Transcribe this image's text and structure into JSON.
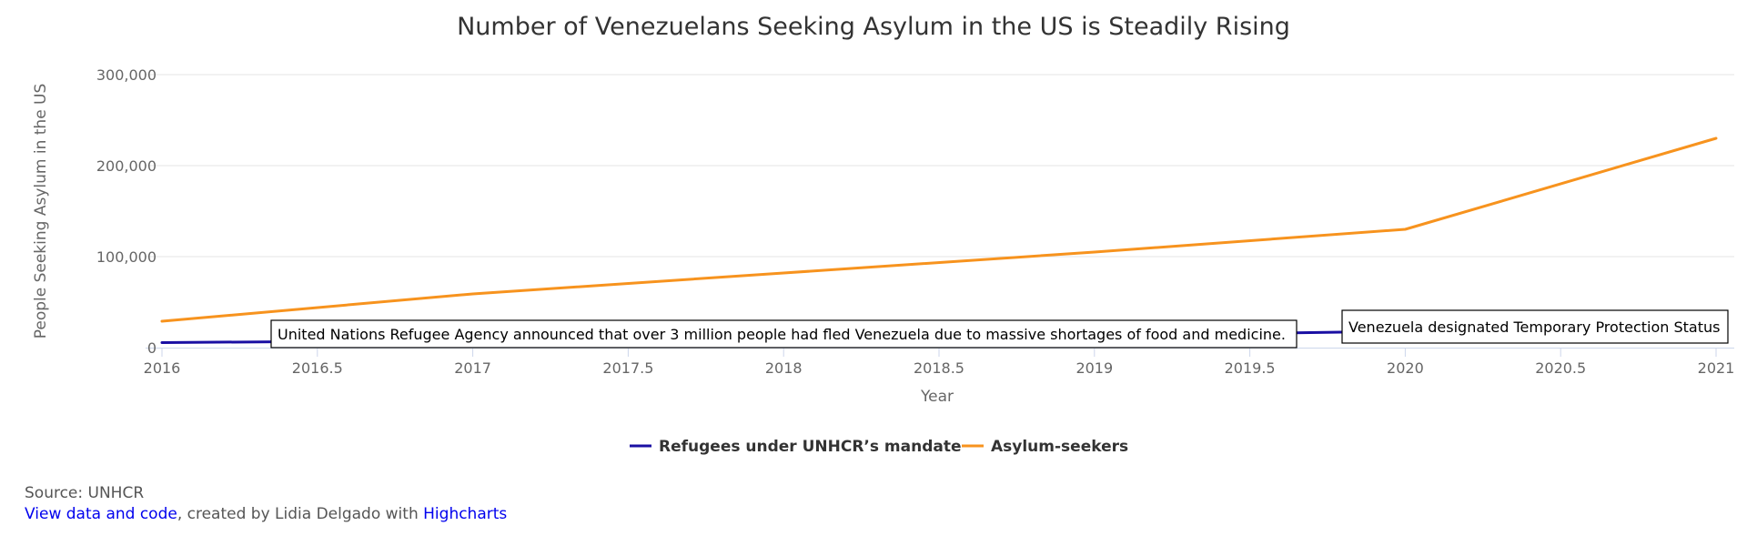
{
  "chart_data": {
    "type": "line",
    "title": "Number of Venezuelans Seeking Asylum in the US is Steadily Rising",
    "xlabel": "Year",
    "ylabel": "People Seeking Asylum in the US",
    "x": [
      2016,
      2017,
      2018,
      2019,
      2020,
      2021
    ],
    "xlim": [
      2016,
      2021
    ],
    "ylim": [
      0,
      300000
    ],
    "xticks": [
      "2016",
      "2016.5",
      "2017",
      "2017.5",
      "2018",
      "2018.5",
      "2019",
      "2019.5",
      "2020",
      "2020.5",
      "2021"
    ],
    "yticks": [
      "0",
      "100,000",
      "200,000",
      "300,000"
    ],
    "grid": true,
    "legend_position": "bottom-center",
    "series": [
      {
        "name": "Refugees under UNHCR’s mandate",
        "color": "#1a0fa3",
        "values": [
          5500,
          8000,
          10500,
          13000,
          18000,
          19500
        ]
      },
      {
        "name": "Asylum-seekers",
        "color": "#f7931e",
        "values": [
          29000,
          59000,
          82000,
          105000,
          130000,
          230000
        ]
      }
    ],
    "annotations": [
      "United Nations Refugee Agency announced that over 3 million people had fled Venezuela due to massive shortages of food and medicine.",
      "Venezuela designated Temporary Protection Status"
    ]
  },
  "credits": {
    "source": "Source: UNHCR",
    "link1": "View data and code",
    "middle": ", created by Lidia Delgado with ",
    "link2": "Highcharts"
  }
}
